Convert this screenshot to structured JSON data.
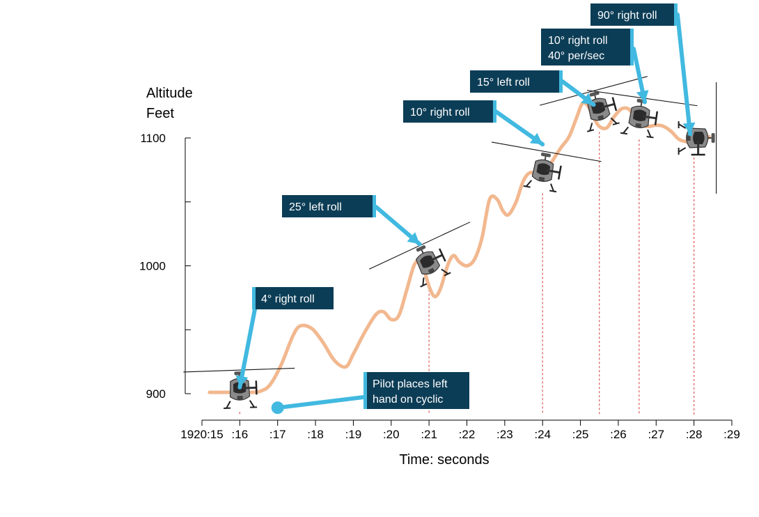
{
  "chart_data": {
    "type": "line",
    "title": "",
    "xlabel": "Time: seconds",
    "ylabel": "Altitude Feet",
    "ylabel_lines": [
      "Altitude",
      "Feet"
    ],
    "xlim": [
      15,
      29
    ],
    "ylim": [
      900,
      1100
    ],
    "x_ticks": [
      15,
      16,
      17,
      18,
      19,
      20,
      21,
      22,
      23,
      24,
      25,
      26,
      27,
      28,
      29
    ],
    "x_tick_labels": [
      "1920:15",
      ":16",
      ":17",
      ":18",
      ":19",
      ":20",
      ":21",
      ":22",
      ":23",
      ":24",
      ":25",
      ":26",
      ":27",
      ":28",
      ":29"
    ],
    "y_ticks": [
      900,
      950,
      1000,
      1050,
      1100
    ],
    "y_tick_labels": [
      "900",
      "",
      "1000",
      "",
      "1100"
    ],
    "grid": false,
    "series": [
      {
        "color": "#f2b88f",
        "x": [
          15.2,
          15.5,
          15.8,
          16.0,
          16.3,
          16.55,
          16.8,
          17.1,
          17.4,
          17.6,
          17.9,
          18.2,
          18.5,
          18.8,
          19.0,
          19.3,
          19.6,
          19.8,
          20.0,
          20.2,
          20.4,
          20.6,
          20.75,
          20.85,
          21.0,
          21.15,
          21.3,
          21.5,
          21.65,
          21.8,
          22.0,
          22.2,
          22.4,
          22.6,
          22.8,
          22.95,
          23.1,
          23.3,
          23.5,
          23.7,
          23.9,
          24.05,
          24.3,
          24.5,
          24.7,
          24.9,
          25.05,
          25.2,
          25.35,
          25.5,
          25.7,
          25.9,
          26.1,
          26.3,
          26.45,
          26.6,
          26.8,
          27.0,
          27.2,
          27.4,
          27.6,
          27.8,
          28.0,
          28.2,
          28.4
        ],
        "y": [
          901,
          901,
          901,
          901,
          901,
          902,
          907,
          923,
          945,
          953,
          951,
          940,
          926,
          921,
          931,
          948,
          962,
          964,
          958,
          961,
          980,
          1000,
          1004,
          999,
          984,
          976,
          982,
          1001,
          1008,
          1003,
          1000,
          1005,
          1022,
          1052,
          1052,
          1043,
          1040,
          1050,
          1067,
          1073,
          1068,
          1072,
          1084,
          1093,
          1101,
          1116,
          1127,
          1125,
          1116,
          1109,
          1108,
          1117,
          1123,
          1122,
          1114,
          1110,
          1109,
          1110,
          1109,
          1105,
          1099,
          1097,
          1095,
          1096,
          1101
        ]
      }
    ],
    "event_markers_x": [
      16.0,
      21.0,
      24.0,
      25.5,
      26.55,
      28.0
    ],
    "helicopter_markers": [
      {
        "x": 16.0,
        "y": 901,
        "roll_deg": -2
      },
      {
        "x": 21.0,
        "y": 1000,
        "roll_deg": -25
      },
      {
        "x": 24.0,
        "y": 1072,
        "roll_deg": 10
      },
      {
        "x": 25.5,
        "y": 1120,
        "roll_deg": -15
      },
      {
        "x": 26.55,
        "y": 1114,
        "roll_deg": 8
      },
      {
        "x": 28.0,
        "y": 1100,
        "roll_deg": 90
      }
    ],
    "annotations": [
      {
        "lines": [
          "4° right roll"
        ],
        "target_x": 16.0,
        "target_y": 905
      },
      {
        "lines": [
          "Pilot places left",
          "hand on cyclic"
        ],
        "target_x": 17.0,
        "target_y": 889
      },
      {
        "lines": [
          "25° left roll"
        ],
        "target_x": 20.75,
        "target_y": 1017
      },
      {
        "lines": [
          "10° right roll"
        ],
        "target_x": 24.0,
        "target_y": 1095
      },
      {
        "lines": [
          "15° left roll"
        ],
        "target_x": 25.35,
        "target_y": 1126
      },
      {
        "lines": [
          "10° right roll",
          "40° per/sec"
        ],
        "target_x": 26.7,
        "target_y": 1128
      },
      {
        "lines": [
          "90° right roll"
        ],
        "target_x": 27.9,
        "target_y": 1103
      }
    ],
    "colors": {
      "line": "#f2b88f",
      "callout_bg": "#0c3d56",
      "callout_accent": "#41b9e0",
      "arrow": "#41b9e0",
      "event_marker": "#e06060",
      "axis": "#000000"
    }
  }
}
